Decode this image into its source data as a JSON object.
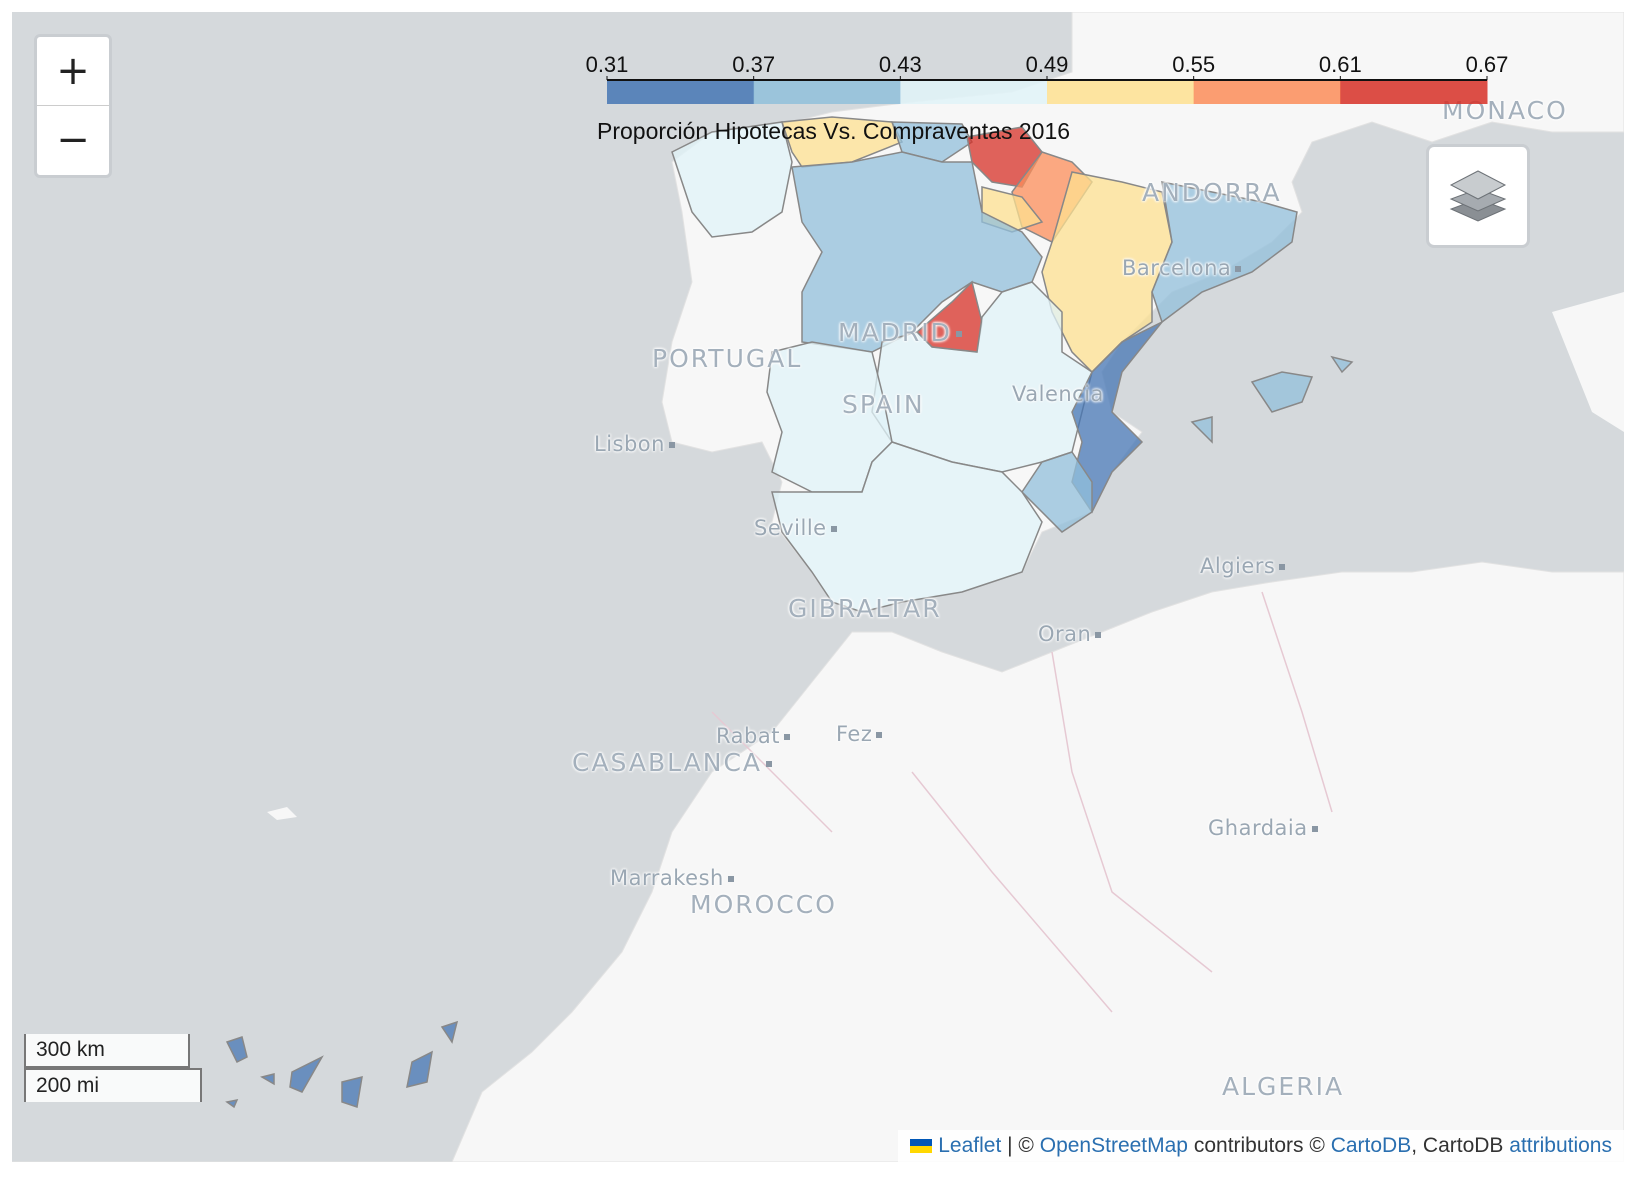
{
  "map": {
    "zoom_in_label": "+",
    "zoom_out_label": "−",
    "layers_icon": "layers-icon"
  },
  "legend": {
    "caption": "Proporción Hipotecas Vs. Compraventas 2016",
    "ticks": [
      "0.31",
      "0.37",
      "0.43",
      "0.49",
      "0.55",
      "0.61",
      "0.67"
    ],
    "colors": [
      "#4575b4",
      "#91bfdb",
      "#e0f3f8",
      "#fee090",
      "#fc8d59",
      "#d73027"
    ]
  },
  "places": {
    "monaco": "MONACO",
    "andorra": "ANDORRA",
    "barcelona": "Barcelona",
    "madrid": "MADRID",
    "portugal": "PORTUGAL",
    "spain": "SPAIN",
    "valencia": "Valencia",
    "lisbon": "Lisbon",
    "seville": "Seville",
    "gibraltar": "GIBRALTAR",
    "algiers": "Algiers",
    "oran": "Oran",
    "rabat": "Rabat",
    "fez": "Fez",
    "casablanca": "CASABLANCA",
    "ghardaia": "Ghardaia",
    "marrakesh": "Marrakesh",
    "morocco": "MOROCCO",
    "algeria": "ALGERIA"
  },
  "scale": {
    "km": "300 km",
    "mi": "200 mi"
  },
  "attribution": {
    "leaflet": "Leaflet",
    "sep1": " | © ",
    "osm": "OpenStreetMap",
    "mid": " contributors © ",
    "cartodb_link": "CartoDB",
    "mid2": ", CartoDB ",
    "attributions": "attributions"
  }
}
